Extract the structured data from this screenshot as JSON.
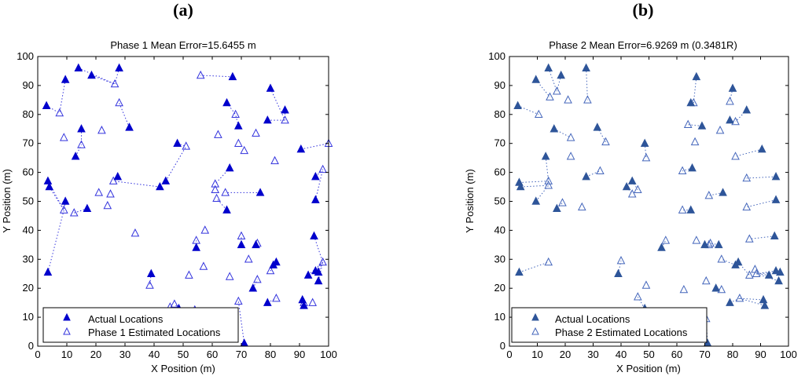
{
  "chart_data": [
    {
      "type": "scatter",
      "panel_label": "(a)",
      "title": "Phase 1 Mean Error=15.6455 m",
      "xlabel": "X Position (m)",
      "ylabel": "Y Position (m)",
      "xlim": [
        0,
        100
      ],
      "ylim": [
        0,
        100
      ],
      "xticks": [
        0,
        10,
        20,
        30,
        40,
        50,
        60,
        70,
        80,
        90,
        100
      ],
      "yticks": [
        0,
        10,
        20,
        30,
        40,
        50,
        60,
        70,
        80,
        90,
        100
      ],
      "legend_position": "bottom-left",
      "colors": {
        "actual": "#0000cc",
        "estimated": "#3333dd",
        "error_line": "#3333dd"
      },
      "series": [
        {
          "name": "Actual Locations",
          "marker": "filled-triangle",
          "points": [
            [
              3,
              83
            ],
            [
              3.5,
              57
            ],
            [
              4,
              55
            ],
            [
              3.5,
              25.5
            ],
            [
              9.5,
              92
            ],
            [
              9.5,
              50
            ],
            [
              13,
              65.5
            ],
            [
              14,
              96
            ],
            [
              15,
              75
            ],
            [
              17,
              47.5
            ],
            [
              18.5,
              93.5
            ],
            [
              27.5,
              58.5
            ],
            [
              28,
              96
            ],
            [
              31.5,
              75.5
            ],
            [
              39,
              25
            ],
            [
              42,
              55
            ],
            [
              44,
              57
            ],
            [
              48,
              70
            ],
            [
              48.5,
              13
            ],
            [
              54.5,
              34
            ],
            [
              65,
              84
            ],
            [
              66,
              61.5
            ],
            [
              65,
              47
            ],
            [
              67,
              93
            ],
            [
              69,
              76
            ],
            [
              70,
              35
            ],
            [
              71,
              1
            ],
            [
              74,
              20
            ],
            [
              75,
              35
            ],
            [
              76.5,
              53
            ],
            [
              79,
              78
            ],
            [
              80,
              89
            ],
            [
              79,
              15
            ],
            [
              81,
              28
            ],
            [
              82,
              29
            ],
            [
              85,
              81.5
            ],
            [
              90.5,
              68
            ],
            [
              91,
              16
            ],
            [
              91.5,
              14
            ],
            [
              93,
              24.5
            ],
            [
              95,
              38
            ],
            [
              95.5,
              50.5
            ],
            [
              95.5,
              58.5
            ],
            [
              95.5,
              26
            ],
            [
              96.5,
              22.5
            ],
            [
              96.5,
              25.5
            ]
          ]
        },
        {
          "name": "Phase 1 Estimated Locations",
          "marker": "hollow-triangle",
          "points": [
            [
              7.5,
              80.5
            ],
            [
              9,
              72
            ],
            [
              9,
              47
            ],
            [
              12.5,
              46
            ],
            [
              15,
              69.5
            ],
            [
              21,
              53
            ],
            [
              22,
              74.5
            ],
            [
              24,
              48.5
            ],
            [
              25,
              52.5
            ],
            [
              26,
              57
            ],
            [
              26.5,
              90.5
            ],
            [
              28,
              84
            ],
            [
              33.5,
              39
            ],
            [
              38.5,
              21
            ],
            [
              45.5,
              13.5
            ],
            [
              47,
              14.5
            ],
            [
              51,
              69
            ],
            [
              52,
              24.5
            ],
            [
              54,
              12.5
            ],
            [
              54.5,
              36.5
            ],
            [
              56,
              93.5
            ],
            [
              57,
              27.5
            ],
            [
              57.5,
              40
            ],
            [
              61,
              56
            ],
            [
              61,
              54
            ],
            [
              61.5,
              51
            ],
            [
              62,
              73
            ],
            [
              64.5,
              53
            ],
            [
              66,
              24
            ],
            [
              68,
              80
            ],
            [
              69,
              70
            ],
            [
              69,
              15.5
            ],
            [
              70,
              38
            ],
            [
              71,
              67.5
            ],
            [
              72.5,
              30
            ],
            [
              75,
              73.5
            ],
            [
              75.5,
              35.5
            ],
            [
              75.5,
              23
            ],
            [
              80,
              26
            ],
            [
              81.5,
              64
            ],
            [
              82,
              16.5
            ],
            [
              85,
              78
            ],
            [
              91.5,
              15
            ],
            [
              94.5,
              15
            ],
            [
              98,
              61
            ],
            [
              98,
              29
            ],
            [
              100,
              70
            ]
          ]
        }
      ]
    },
    {
      "type": "scatter",
      "panel_label": "(b)",
      "title": "Phase 2 Mean Error=6.9269 m (0.3481R)",
      "xlabel": "X Position (m)",
      "ylabel": "Y Position (m)",
      "xlim": [
        0,
        100
      ],
      "ylim": [
        0,
        100
      ],
      "xticks": [
        0,
        10,
        20,
        30,
        40,
        50,
        60,
        70,
        80,
        90,
        100
      ],
      "yticks": [
        0,
        10,
        20,
        30,
        40,
        50,
        60,
        70,
        80,
        90,
        100
      ],
      "legend_position": "bottom-left",
      "colors": {
        "actual": "#2e5599",
        "estimated": "#4466bb",
        "error_line": "#4466bb"
      },
      "series": [
        {
          "name": "Actual Locations",
          "marker": "filled-triangle",
          "points": [
            [
              3,
              83
            ],
            [
              3.5,
              56.5
            ],
            [
              4,
              55
            ],
            [
              3.5,
              25.5
            ],
            [
              9.5,
              92
            ],
            [
              9.5,
              50
            ],
            [
              13,
              65.5
            ],
            [
              14,
              96
            ],
            [
              16,
              75
            ],
            [
              17,
              47.5
            ],
            [
              18.5,
              93.5
            ],
            [
              27.5,
              58.5
            ],
            [
              27.5,
              96
            ],
            [
              31.5,
              75.5
            ],
            [
              39,
              25
            ],
            [
              42,
              55
            ],
            [
              44,
              57
            ],
            [
              48.5,
              70
            ],
            [
              48.5,
              13
            ],
            [
              54.5,
              34
            ],
            [
              65,
              84
            ],
            [
              65.5,
              61.5
            ],
            [
              65,
              47
            ],
            [
              67,
              93
            ],
            [
              69,
              76
            ],
            [
              70,
              35
            ],
            [
              71,
              1
            ],
            [
              74,
              20
            ],
            [
              75,
              35
            ],
            [
              76.5,
              53
            ],
            [
              79,
              78
            ],
            [
              80,
              89
            ],
            [
              79,
              15
            ],
            [
              81,
              28
            ],
            [
              82,
              29
            ],
            [
              85,
              81.5
            ],
            [
              90.5,
              68
            ],
            [
              91,
              16
            ],
            [
              91.5,
              14
            ],
            [
              93,
              24.5
            ],
            [
              95,
              38
            ],
            [
              95.5,
              50.5
            ],
            [
              95.5,
              58.5
            ],
            [
              95.5,
              26
            ],
            [
              96.5,
              22.5
            ],
            [
              97,
              25.5
            ]
          ]
        },
        {
          "name": "Phase 2 Estimated Locations",
          "marker": "hollow-triangle",
          "points": [
            [
              10.5,
              80
            ],
            [
              14,
              57
            ],
            [
              14,
              29
            ],
            [
              14,
              55.5
            ],
            [
              14.5,
              86
            ],
            [
              17,
              88
            ],
            [
              19,
              49.5
            ],
            [
              21,
              85
            ],
            [
              22,
              72
            ],
            [
              22,
              65.5
            ],
            [
              26,
              48
            ],
            [
              28,
              85
            ],
            [
              32.5,
              60.5
            ],
            [
              34.5,
              70.5
            ],
            [
              40,
              29.5
            ],
            [
              44,
              52.5
            ],
            [
              46,
              54
            ],
            [
              46,
              17
            ],
            [
              49,
              65
            ],
            [
              49,
              21
            ],
            [
              56,
              36.5
            ],
            [
              62,
              60.5
            ],
            [
              62,
              47
            ],
            [
              62.5,
              19.5
            ],
            [
              64,
              76.5
            ],
            [
              66,
              84
            ],
            [
              66.5,
              70.5
            ],
            [
              67,
              36.5
            ],
            [
              70.5,
              22.5
            ],
            [
              70.5,
              9.5
            ],
            [
              71.5,
              35
            ],
            [
              71.5,
              52
            ],
            [
              72,
              35.5
            ],
            [
              75.5,
              74.5
            ],
            [
              76,
              30
            ],
            [
              76,
              19.5
            ],
            [
              79,
              84.5
            ],
            [
              81,
              77.5
            ],
            [
              81,
              65.5
            ],
            [
              82.5,
              16.5
            ],
            [
              85,
              58
            ],
            [
              85,
              48
            ],
            [
              86,
              37
            ],
            [
              86,
              24.5
            ],
            [
              88,
              26.5
            ],
            [
              88.5,
              25
            ]
          ]
        }
      ]
    }
  ]
}
